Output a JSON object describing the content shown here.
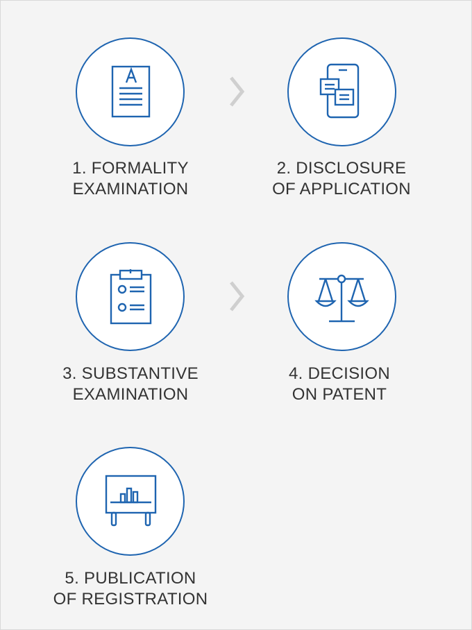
{
  "colors": {
    "accent": "#1e64b0",
    "text": "#333333",
    "arrow": "#cfcfcf",
    "background": "#f4f4f4"
  },
  "steps": [
    {
      "icon": "document-icon",
      "line1": "1. FORMALITY",
      "line2": "EXAMINATION"
    },
    {
      "icon": "mobile-documents-icon",
      "line1": "2. DISCLOSURE",
      "line2": "OF APPLICATION"
    },
    {
      "icon": "clipboard-checklist-icon",
      "line1": "3. SUBSTANTIVE",
      "line2": "EXAMINATION"
    },
    {
      "icon": "balance-scale-icon",
      "line1": "4. DECISION",
      "line2": "ON PATENT"
    },
    {
      "icon": "presentation-board-icon",
      "line1": "5. PUBLICATION",
      "line2": "OF REGISTRATION"
    }
  ],
  "arrows": [
    {
      "icon": "chevron-right-icon"
    },
    {
      "icon": "chevron-right-icon"
    }
  ]
}
